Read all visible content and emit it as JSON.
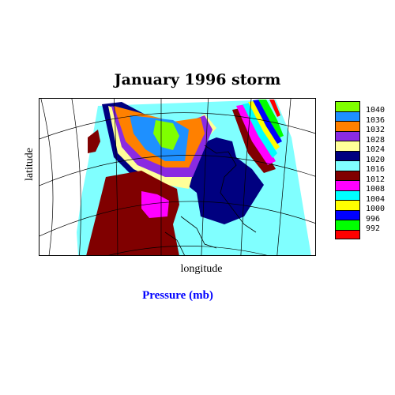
{
  "title": "January 1996 storm",
  "axis": {
    "xlabel": "longitude",
    "ylabel": "latitude"
  },
  "caption": "Pressure (mb)",
  "legend": {
    "levels": [
      {
        "label": "1040",
        "color": "#7fff00"
      },
      {
        "label": "1036",
        "color": "#1e90ff"
      },
      {
        "label": "1032",
        "color": "#ff8000"
      },
      {
        "label": "1028",
        "color": "#8a2be2"
      },
      {
        "label": "1024",
        "color": "#ffff99"
      },
      {
        "label": "1020",
        "color": "#000080"
      },
      {
        "label": "1016",
        "color": "#80ffff"
      },
      {
        "label": "1012",
        "color": "#800000"
      },
      {
        "label": "1008",
        "color": "#ff00ff"
      },
      {
        "label": "1004",
        "color": "#00ffff"
      },
      {
        "label": "1000",
        "color": "#ffff00"
      },
      {
        "label": "996",
        "color": "#0000ff"
      },
      {
        "label": "992",
        "color": "#00ff00"
      },
      {
        "label": "",
        "color": "#ff0000"
      }
    ]
  }
}
